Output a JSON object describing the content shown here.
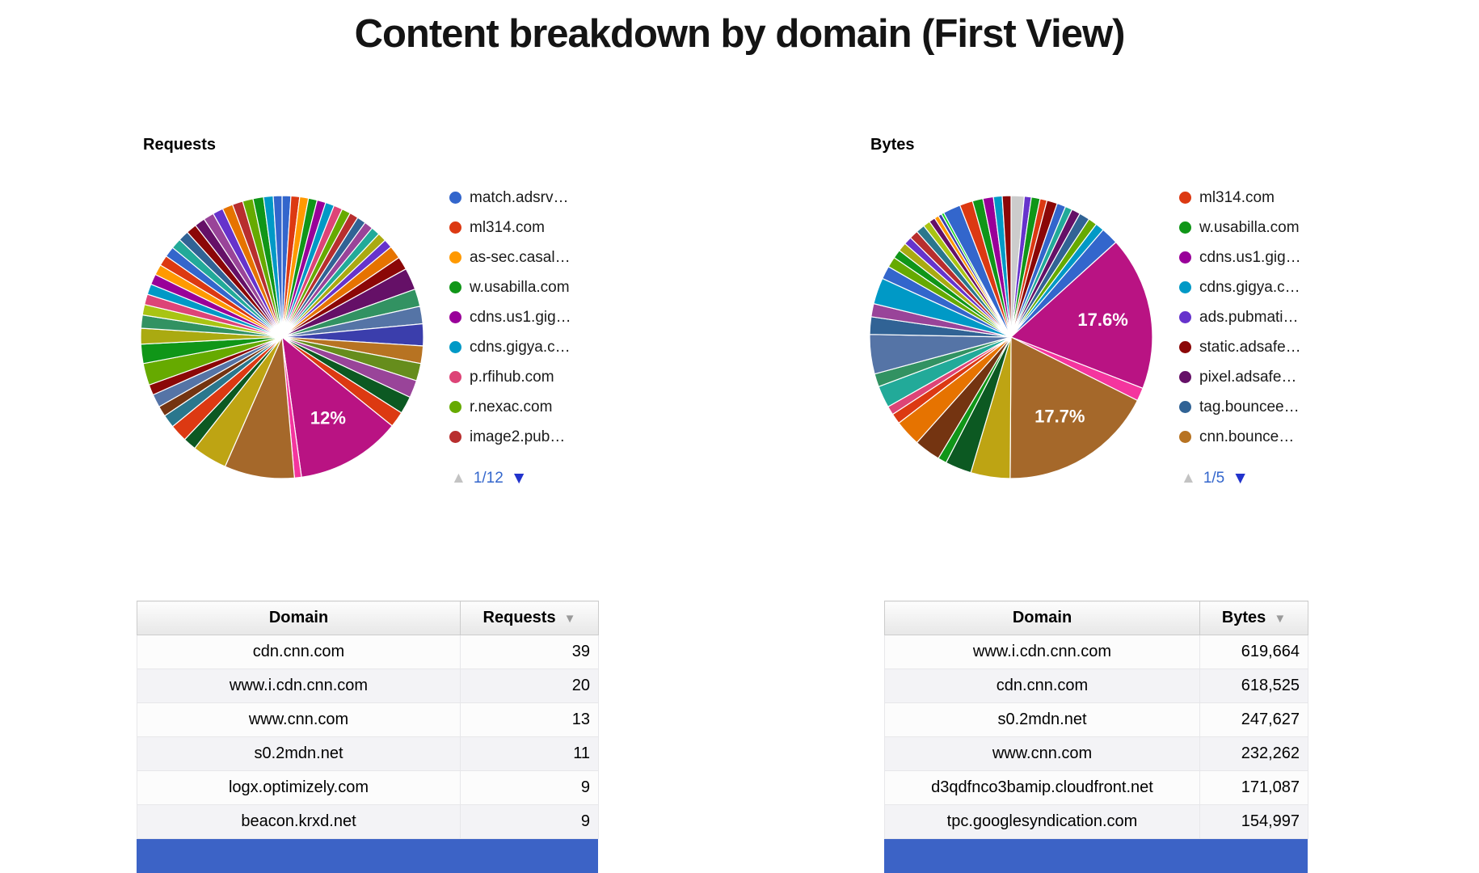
{
  "page": {
    "title": "Content breakdown by domain (First View)"
  },
  "colors": {
    "pager_text": "#3366cc",
    "pager_down_arrow": "#2233cc",
    "pager_up_arrow_disabled": "#c3c3c3",
    "selected_row_blue": "#3c63c6",
    "slice_label_text": "#ffffff"
  },
  "icons": {
    "page_up": "▲",
    "page_down": "▼",
    "sort_desc": "▼"
  },
  "requests_section": {
    "heading": "Requests",
    "legend": [
      {
        "label": "match.adsrv…",
        "color": "#3366cc"
      },
      {
        "label": "ml314.com",
        "color": "#dc3912"
      },
      {
        "label": "as-sec.casal…",
        "color": "#ff9900"
      },
      {
        "label": "w.usabilla.com",
        "color": "#109618"
      },
      {
        "label": "cdns.us1.gig…",
        "color": "#990099"
      },
      {
        "label": "cdns.gigya.c…",
        "color": "#0099c6"
      },
      {
        "label": "p.rfihub.com",
        "color": "#dd4477"
      },
      {
        "label": "r.nexac.com",
        "color": "#66aa00"
      },
      {
        "label": "image2.pub…",
        "color": "#b82e2e"
      }
    ],
    "pager": {
      "label": "1/12"
    }
  },
  "bytes_section": {
    "heading": "Bytes",
    "legend": [
      {
        "label": "ml314.com",
        "color": "#dc3912"
      },
      {
        "label": "w.usabilla.com",
        "color": "#109618"
      },
      {
        "label": "cdns.us1.gig…",
        "color": "#990099"
      },
      {
        "label": "cdns.gigya.c…",
        "color": "#0099c6"
      },
      {
        "label": "ads.pubmati…",
        "color": "#6633cc"
      },
      {
        "label": "static.adsafe…",
        "color": "#8b0707"
      },
      {
        "label": "pixel.adsafe…",
        "color": "#651067"
      },
      {
        "label": "tag.bouncee…",
        "color": "#316395"
      },
      {
        "label": "cnn.bounce…",
        "color": "#b77322"
      }
    ],
    "pager": {
      "label": "1/5"
    }
  },
  "chart_data": [
    {
      "type": "pie",
      "name": "requests_by_domain",
      "title": "Requests",
      "labels_visible": [
        "12%"
      ],
      "legend_position": "right",
      "slices": [
        {
          "value": 1,
          "color": "#3366cc"
        },
        {
          "value": 1,
          "color": "#dc3912"
        },
        {
          "value": 1,
          "color": "#ff9900"
        },
        {
          "value": 1,
          "color": "#109618"
        },
        {
          "value": 1,
          "color": "#990099"
        },
        {
          "value": 1,
          "color": "#0099c6"
        },
        {
          "value": 1,
          "color": "#dd4477"
        },
        {
          "value": 1,
          "color": "#66aa00"
        },
        {
          "value": 1,
          "color": "#b82e2e"
        },
        {
          "value": 1,
          "color": "#316395"
        },
        {
          "value": 1,
          "color": "#994499"
        },
        {
          "value": 1,
          "color": "#22aa99"
        },
        {
          "value": 1,
          "color": "#aaaa11"
        },
        {
          "value": 1,
          "color": "#6633cc"
        },
        {
          "value": 1.5,
          "color": "#e67300"
        },
        {
          "value": 1.5,
          "color": "#8b0707"
        },
        {
          "value": 2.5,
          "color": "#651067"
        },
        {
          "value": 2,
          "color": "#329262"
        },
        {
          "value": 2,
          "color": "#5574a6"
        },
        {
          "value": 2.5,
          "color": "#3b3eac"
        },
        {
          "value": 2,
          "color": "#b77322"
        },
        {
          "value": 2,
          "color": "#668d1c"
        },
        {
          "value": 2,
          "color": "#994499"
        },
        {
          "value": 2,
          "color": "#0c5922"
        },
        {
          "value": 1.8,
          "color": "#dc3912"
        },
        {
          "value": 12,
          "color": "#b91383",
          "label": "12%"
        },
        {
          "value": 0.8,
          "color": "#f4359e"
        },
        {
          "value": 8,
          "color": "#a5682a"
        },
        {
          "value": 4,
          "color": "#bea413"
        },
        {
          "value": 1.5,
          "color": "#0c5922"
        },
        {
          "value": 2,
          "color": "#dc3912"
        },
        {
          "value": 1.5,
          "color": "#2a778d"
        },
        {
          "value": 1.2,
          "color": "#743411"
        },
        {
          "value": 1.5,
          "color": "#5574a6"
        },
        {
          "value": 1.2,
          "color": "#8b0707"
        },
        {
          "value": 2.5,
          "color": "#66aa00"
        },
        {
          "value": 2.2,
          "color": "#109618"
        },
        {
          "value": 1.8,
          "color": "#aaaa11"
        },
        {
          "value": 1.5,
          "color": "#329262"
        },
        {
          "value": 1.2,
          "color": "#a9c413"
        },
        {
          "value": 1.2,
          "color": "#dd4477"
        },
        {
          "value": 1.2,
          "color": "#0099c6"
        },
        {
          "value": 1.2,
          "color": "#990099"
        },
        {
          "value": 1.2,
          "color": "#ff9900"
        },
        {
          "value": 1.2,
          "color": "#dc3912"
        },
        {
          "value": 1.2,
          "color": "#3366cc"
        },
        {
          "value": 1.2,
          "color": "#22aa99"
        },
        {
          "value": 1.2,
          "color": "#316395"
        },
        {
          "value": 1.2,
          "color": "#8b0707"
        },
        {
          "value": 1.2,
          "color": "#651067"
        },
        {
          "value": 1.2,
          "color": "#994499"
        },
        {
          "value": 1.2,
          "color": "#6633cc"
        },
        {
          "value": 1.2,
          "color": "#e67300"
        },
        {
          "value": 1.2,
          "color": "#b82e2e"
        },
        {
          "value": 1.2,
          "color": "#66aa00"
        },
        {
          "value": 1.2,
          "color": "#109618"
        },
        {
          "value": 1.1,
          "color": "#0099c6"
        },
        {
          "value": 1,
          "color": "#3366cc"
        }
      ]
    },
    {
      "type": "pie",
      "name": "bytes_by_domain",
      "title": "Bytes",
      "labels_visible": [
        "17.6%",
        "17.7%"
      ],
      "legend_position": "right",
      "slices": [
        {
          "value": 1.5,
          "color": "#cccccc"
        },
        {
          "value": 0.8,
          "color": "#6633cc"
        },
        {
          "value": 1,
          "color": "#109618"
        },
        {
          "value": 0.8,
          "color": "#dc3912"
        },
        {
          "value": 1.2,
          "color": "#8b0707"
        },
        {
          "value": 1,
          "color": "#3366cc"
        },
        {
          "value": 0.8,
          "color": "#22aa99"
        },
        {
          "value": 1,
          "color": "#651067"
        },
        {
          "value": 1.2,
          "color": "#316395"
        },
        {
          "value": 1,
          "color": "#66aa00"
        },
        {
          "value": 1,
          "color": "#0099c6"
        },
        {
          "value": 2,
          "color": "#3366cc"
        },
        {
          "value": 17.6,
          "color": "#b91383",
          "label": "17.6%"
        },
        {
          "value": 1.5,
          "color": "#f4359e"
        },
        {
          "value": 17.7,
          "color": "#a5682a",
          "label": "17.7%"
        },
        {
          "value": 4.5,
          "color": "#bea413"
        },
        {
          "value": 3,
          "color": "#0c5922"
        },
        {
          "value": 1,
          "color": "#109618"
        },
        {
          "value": 3,
          "color": "#743411"
        },
        {
          "value": 3,
          "color": "#e67300"
        },
        {
          "value": 1.2,
          "color": "#dc3912"
        },
        {
          "value": 1,
          "color": "#dd4477"
        },
        {
          "value": 2.5,
          "color": "#22aa99"
        },
        {
          "value": 1.5,
          "color": "#329262"
        },
        {
          "value": 4.5,
          "color": "#5574a6"
        },
        {
          "value": 2,
          "color": "#316395"
        },
        {
          "value": 1.5,
          "color": "#994499"
        },
        {
          "value": 3,
          "color": "#0099c6"
        },
        {
          "value": 1.5,
          "color": "#3366cc"
        },
        {
          "value": 1.2,
          "color": "#66aa00"
        },
        {
          "value": 1,
          "color": "#109618"
        },
        {
          "value": 1,
          "color": "#aaaa11"
        },
        {
          "value": 0.9,
          "color": "#6633cc"
        },
        {
          "value": 1,
          "color": "#b82e2e"
        },
        {
          "value": 1,
          "color": "#2a778d"
        },
        {
          "value": 0.8,
          "color": "#a9c413"
        },
        {
          "value": 0.7,
          "color": "#651067"
        },
        {
          "value": 0.5,
          "color": "#ff9900"
        },
        {
          "value": 0.4,
          "color": "#3b3eac"
        },
        {
          "value": 0.3,
          "color": "#16d620"
        },
        {
          "value": 2,
          "color": "#3366cc"
        },
        {
          "value": 1.5,
          "color": "#dc3912"
        },
        {
          "value": 1.2,
          "color": "#109618"
        },
        {
          "value": 1.2,
          "color": "#990099"
        },
        {
          "value": 1,
          "color": "#0099c6"
        },
        {
          "value": 1,
          "color": "#8b0707"
        }
      ]
    }
  ],
  "tables": {
    "requests": {
      "headers": [
        "Domain",
        "Requests"
      ],
      "rows": [
        [
          "cdn.cnn.com",
          "39"
        ],
        [
          "www.i.cdn.cnn.com",
          "20"
        ],
        [
          "www.cnn.com",
          "13"
        ],
        [
          "s0.2mdn.net",
          "11"
        ],
        [
          "logx.optimizely.com",
          "9"
        ],
        [
          "beacon.krxd.net",
          "9"
        ]
      ]
    },
    "bytes": {
      "headers": [
        "Domain",
        "Bytes"
      ],
      "rows": [
        [
          "www.i.cdn.cnn.com",
          "619,664"
        ],
        [
          "cdn.cnn.com",
          "618,525"
        ],
        [
          "s0.2mdn.net",
          "247,627"
        ],
        [
          "www.cnn.com",
          "232,262"
        ],
        [
          "d3qdfnco3bamip.cloudfront.net",
          "171,087"
        ],
        [
          "tpc.googlesyndication.com",
          "154,997"
        ]
      ]
    }
  }
}
